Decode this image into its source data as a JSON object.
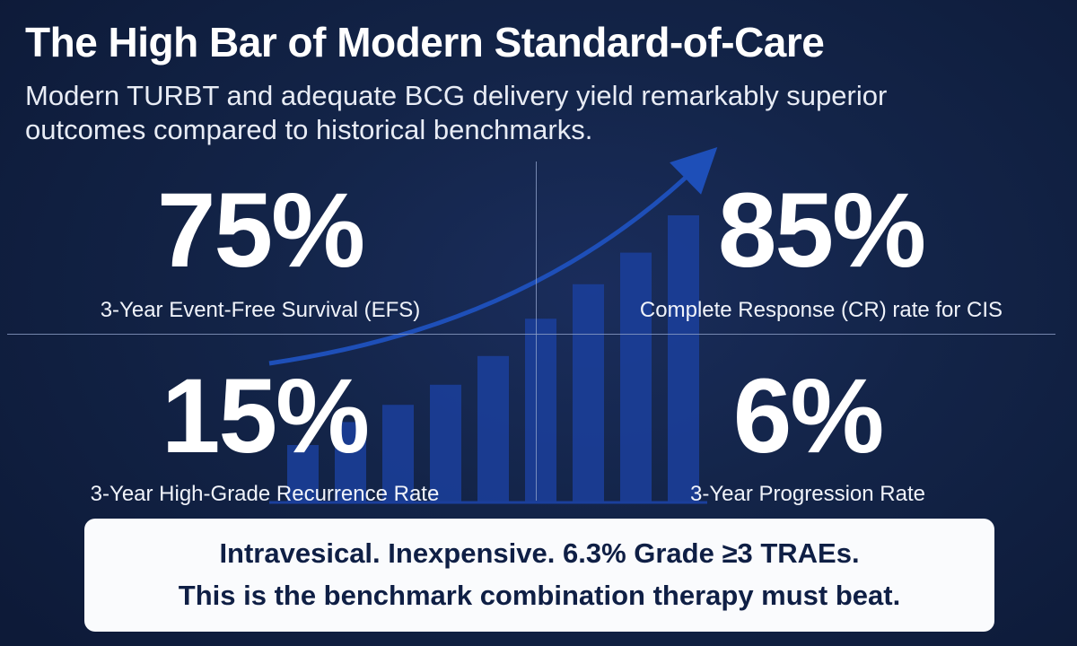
{
  "header": {
    "title": "The High Bar of Modern Standard-of-Care",
    "subtitle": "Modern TURBT and adequate BCG delivery yield remarkably superior outcomes compared to historical benchmarks."
  },
  "stats": [
    {
      "value": "75%",
      "label": "3-Year Event-Free Survival (EFS)"
    },
    {
      "value": "85%",
      "label": "Complete Response (CR) rate for CIS"
    },
    {
      "value": "15%",
      "label": "3-Year High-Grade Recurrence Rate"
    },
    {
      "value": "6%",
      "label": "3-Year Progression Rate"
    }
  ],
  "callout": {
    "line1": "Intravesical. Inexpensive. 6.3% Grade ≥3 TRAEs.",
    "line2": "This is the benchmark combination therapy must beat."
  },
  "background_graphic": {
    "bar_levels": [
      0.2,
      0.28,
      0.34,
      0.41,
      0.51,
      0.64,
      0.76,
      0.87,
      1.0
    ],
    "trend": "upward arrow"
  },
  "colors": {
    "background": "#132448",
    "bar": "#1b3f9c",
    "arrow": "#1e4fb8",
    "callout_bg": "#fafbfd",
    "callout_text": "#0f1f45"
  }
}
